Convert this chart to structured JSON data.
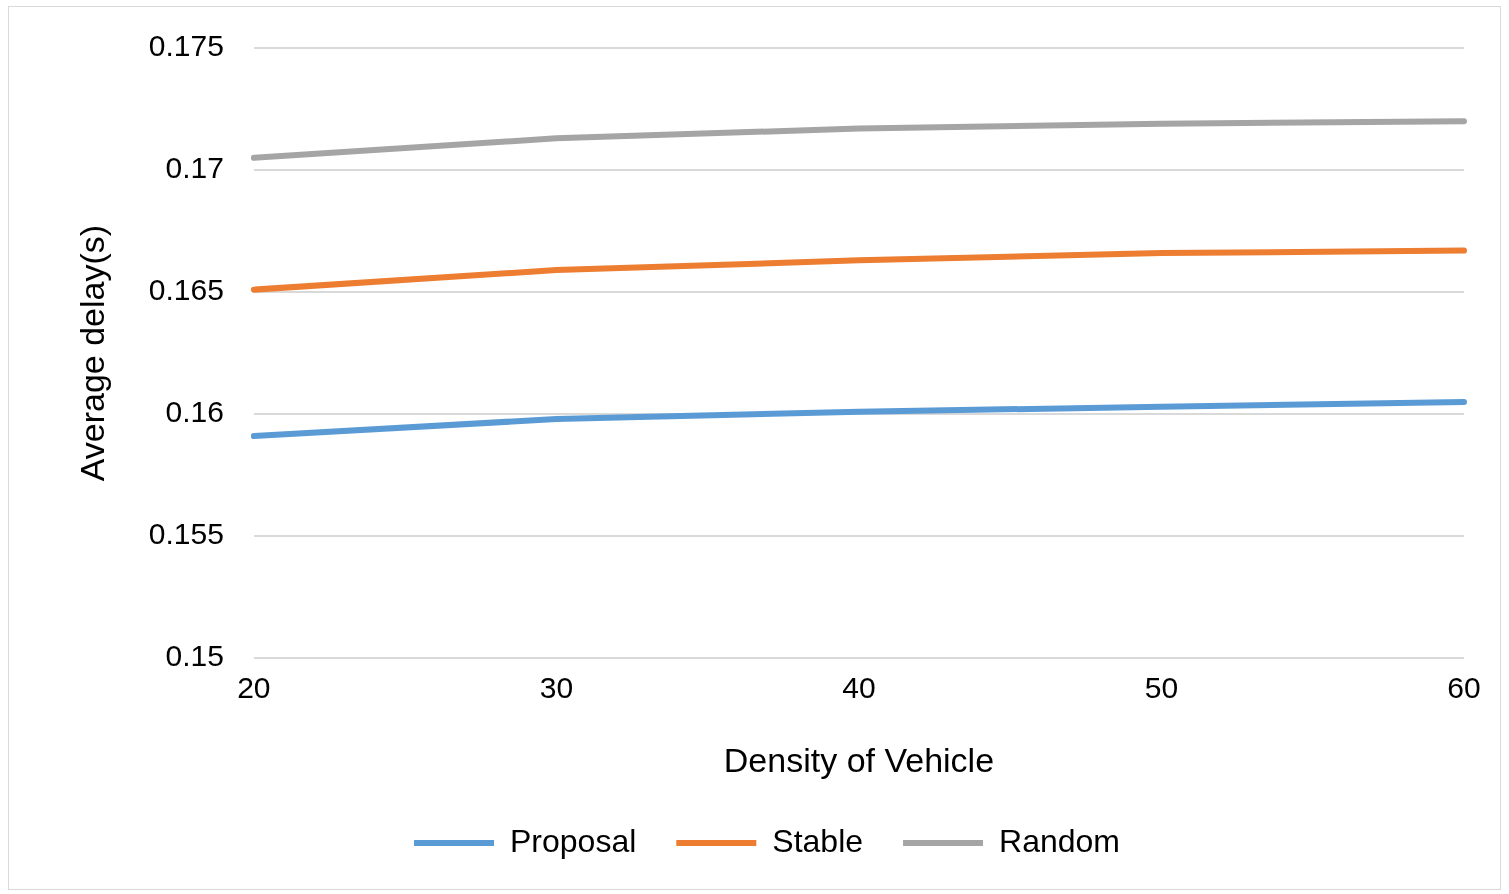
{
  "chart_data": {
    "type": "line",
    "xlabel": "Density of Vehicle",
    "ylabel": "Average delay(s)",
    "categories": [
      "20",
      "30",
      "40",
      "50",
      "60"
    ],
    "series": [
      {
        "name": "Proposal",
        "color": "#5b9bd5",
        "values": [
          0.1591,
          0.1598,
          0.1601,
          0.1603,
          0.1605
        ]
      },
      {
        "name": "Stable",
        "color": "#ed7d31",
        "values": [
          0.1651,
          0.1659,
          0.1663,
          0.1666,
          0.1667
        ]
      },
      {
        "name": "Random",
        "color": "#a5a5a5",
        "values": [
          0.1705,
          0.1713,
          0.1717,
          0.1719,
          0.172
        ]
      }
    ],
    "ylim": [
      0.15,
      0.175
    ],
    "yticks": [
      0.15,
      0.155,
      0.16,
      0.165,
      0.17,
      0.175
    ],
    "grid": "y",
    "legend": "bottom",
    "marker": "none",
    "line_style": "solid"
  }
}
